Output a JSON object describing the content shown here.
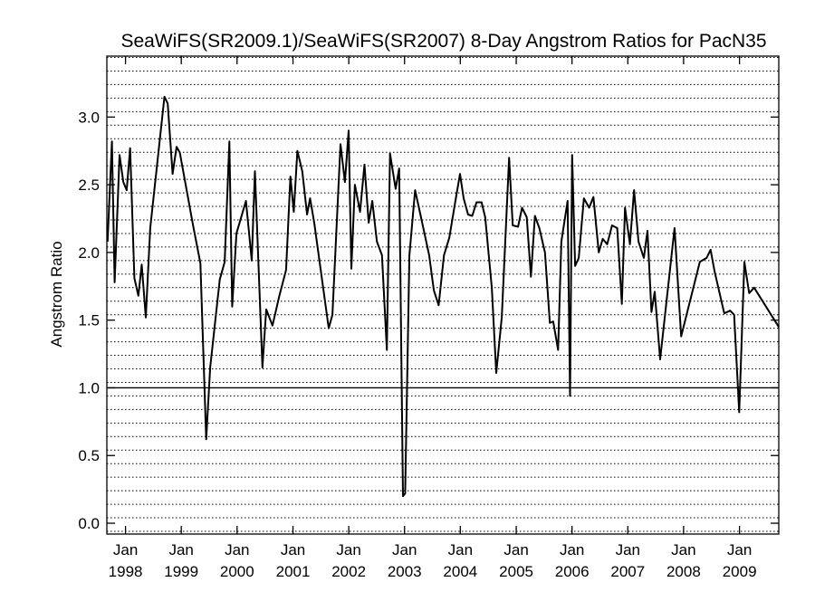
{
  "chart_data": {
    "type": "line",
    "title": "SeaWiFS(SR2009.1)/SeaWiFS(SR2007) 8-Day Angstrom Ratios for PacN35",
    "xlabel": "",
    "ylabel": "Angstrom Ratio",
    "xlim": [
      "1997-09-01",
      "2009-09-15"
    ],
    "ylim": [
      -0.08,
      3.45
    ],
    "y_ticks": [
      "0.0",
      "0.5",
      "1.0",
      "1.5",
      "2.0",
      "2.5",
      "3.0"
    ],
    "x_ticks": [
      {
        "month": "Jan",
        "year": "1998",
        "date": "1998-01-01"
      },
      {
        "month": "Jan",
        "year": "1999",
        "date": "1999-01-01"
      },
      {
        "month": "Jan",
        "year": "2000",
        "date": "2000-01-01"
      },
      {
        "month": "Jan",
        "year": "2001",
        "date": "2001-01-01"
      },
      {
        "month": "Jan",
        "year": "2002",
        "date": "2002-01-01"
      },
      {
        "month": "Jan",
        "year": "2003",
        "date": "2003-01-01"
      },
      {
        "month": "Jan",
        "year": "2004",
        "date": "2004-01-01"
      },
      {
        "month": "Jan",
        "year": "2005",
        "date": "2005-01-01"
      },
      {
        "month": "Jan",
        "year": "2006",
        "date": "2006-01-01"
      },
      {
        "month": "Jan",
        "year": "2007",
        "date": "2007-01-01"
      },
      {
        "month": "Jan",
        "year": "2008",
        "date": "2008-01-01"
      },
      {
        "month": "Jan",
        "year": "2009",
        "date": "2009-01-01"
      }
    ],
    "reference_line": 1.0,
    "grid": "dotted horizontal lines",
    "series": [
      {
        "values": [
          [
            "1997-09-06",
            2.08
          ],
          [
            "1997-10-04",
            2.82
          ],
          [
            "1997-10-22",
            1.78
          ],
          [
            "1997-11-23",
            2.72
          ],
          [
            "1997-12-18",
            2.52
          ],
          [
            "1998-01-09",
            2.46
          ],
          [
            "1998-01-31",
            2.77
          ],
          [
            "1998-02-28",
            1.81
          ],
          [
            "1998-03-26",
            1.68
          ],
          [
            "1998-04-17",
            1.91
          ],
          [
            "1998-05-14",
            1.52
          ],
          [
            "1998-06-12",
            2.18
          ],
          [
            "1998-09-13",
            3.15
          ],
          [
            "1998-10-04",
            3.1
          ],
          [
            "1998-11-05",
            2.58
          ],
          [
            "1998-12-01",
            2.78
          ],
          [
            "1998-12-22",
            2.74
          ],
          [
            "1999-03-19",
            2.2
          ],
          [
            "1999-05-06",
            1.92
          ],
          [
            "1999-06-13",
            0.62
          ],
          [
            "1999-07-09",
            1.15
          ],
          [
            "1999-09-10",
            1.8
          ],
          [
            "1999-10-12",
            1.93
          ],
          [
            "1999-11-12",
            2.82
          ],
          [
            "1999-11-30",
            1.6
          ],
          [
            "1999-12-28",
            2.14
          ],
          [
            "2000-02-28",
            2.38
          ],
          [
            "2000-04-06",
            1.94
          ],
          [
            "2000-04-27",
            2.6
          ],
          [
            "2000-06-15",
            1.15
          ],
          [
            "2000-07-10",
            1.58
          ],
          [
            "2000-08-20",
            1.46
          ],
          [
            "2000-10-04",
            1.68
          ],
          [
            "2000-11-17",
            1.87
          ],
          [
            "2000-12-15",
            2.56
          ],
          [
            "2001-01-06",
            2.3
          ],
          [
            "2001-01-30",
            2.75
          ],
          [
            "2001-03-03",
            2.6
          ],
          [
            "2001-04-03",
            2.28
          ],
          [
            "2001-04-23",
            2.4
          ],
          [
            "2001-05-20",
            2.22
          ],
          [
            "2001-08-23",
            1.44
          ],
          [
            "2001-09-16",
            1.54
          ],
          [
            "2001-11-08",
            2.8
          ],
          [
            "2001-12-07",
            2.52
          ],
          [
            "2001-12-31",
            2.9
          ],
          [
            "2002-01-18",
            1.88
          ],
          [
            "2002-02-10",
            2.5
          ],
          [
            "2002-03-16",
            2.3
          ],
          [
            "2002-04-14",
            2.65
          ],
          [
            "2002-05-11",
            2.22
          ],
          [
            "2002-06-04",
            2.38
          ],
          [
            "2002-07-04",
            2.08
          ],
          [
            "2002-08-06",
            1.98
          ],
          [
            "2002-09-07",
            1.28
          ],
          [
            "2002-09-28",
            2.73
          ],
          [
            "2002-11-04",
            2.47
          ],
          [
            "2002-11-27",
            2.62
          ],
          [
            "2002-12-22",
            0.2
          ],
          [
            "2003-01-05",
            0.22
          ],
          [
            "2003-02-02",
            1.98
          ],
          [
            "2003-03-11",
            2.46
          ],
          [
            "2003-05-04",
            2.18
          ],
          [
            "2003-06-11",
            1.98
          ],
          [
            "2003-07-12",
            1.72
          ],
          [
            "2003-08-12",
            1.61
          ],
          [
            "2003-09-16",
            1.98
          ],
          [
            "2003-10-21",
            2.11
          ],
          [
            "2003-12-03",
            2.4
          ],
          [
            "2003-12-30",
            2.58
          ],
          [
            "2004-01-23",
            2.4
          ],
          [
            "2004-02-21",
            2.28
          ],
          [
            "2004-03-19",
            2.27
          ],
          [
            "2004-04-16",
            2.37
          ],
          [
            "2004-05-19",
            2.37
          ],
          [
            "2004-06-12",
            2.26
          ],
          [
            "2004-07-25",
            1.74
          ],
          [
            "2004-08-23",
            1.11
          ],
          [
            "2004-09-28",
            1.52
          ],
          [
            "2004-11-15",
            2.7
          ],
          [
            "2004-12-09",
            2.2
          ],
          [
            "2005-01-13",
            2.19
          ],
          [
            "2005-02-08",
            2.33
          ],
          [
            "2005-03-11",
            2.26
          ],
          [
            "2005-04-07",
            1.82
          ],
          [
            "2005-05-03",
            2.27
          ],
          [
            "2005-06-01",
            2.18
          ],
          [
            "2005-07-08",
            2.0
          ],
          [
            "2005-08-09",
            1.48
          ],
          [
            "2005-08-31",
            1.49
          ],
          [
            "2005-10-02",
            1.28
          ],
          [
            "2005-10-23",
            2.08
          ],
          [
            "2005-12-03",
            2.38
          ],
          [
            "2005-12-19",
            0.94
          ],
          [
            "2006-01-02",
            2.72
          ],
          [
            "2006-01-21",
            1.9
          ],
          [
            "2006-02-14",
            1.96
          ],
          [
            "2006-03-20",
            2.4
          ],
          [
            "2006-04-23",
            2.33
          ],
          [
            "2006-05-21",
            2.41
          ],
          [
            "2006-06-25",
            2.0
          ],
          [
            "2006-07-21",
            2.1
          ],
          [
            "2006-08-19",
            2.06
          ],
          [
            "2006-09-20",
            2.2
          ],
          [
            "2006-10-24",
            2.18
          ],
          [
            "2006-11-23",
            1.62
          ],
          [
            "2006-12-14",
            2.33
          ],
          [
            "2007-01-15",
            2.06
          ],
          [
            "2007-02-11",
            2.46
          ],
          [
            "2007-03-12",
            2.08
          ],
          [
            "2007-04-16",
            1.96
          ],
          [
            "2007-05-10",
            2.16
          ],
          [
            "2007-06-05",
            1.56
          ],
          [
            "2007-06-26",
            1.71
          ],
          [
            "2007-08-01",
            1.21
          ],
          [
            "2007-11-03",
            2.18
          ],
          [
            "2007-12-16",
            1.38
          ],
          [
            "2008-04-16",
            1.93
          ],
          [
            "2008-05-31",
            1.96
          ],
          [
            "2008-06-26",
            2.02
          ],
          [
            "2008-07-22",
            1.86
          ],
          [
            "2008-09-23",
            1.55
          ],
          [
            "2008-11-01",
            1.57
          ],
          [
            "2008-11-27",
            1.54
          ],
          [
            "2008-12-30",
            0.82
          ],
          [
            "2009-02-02",
            1.93
          ],
          [
            "2009-03-05",
            1.7
          ],
          [
            "2009-04-07",
            1.74
          ],
          [
            "2009-09-15",
            1.45
          ]
        ]
      }
    ]
  }
}
